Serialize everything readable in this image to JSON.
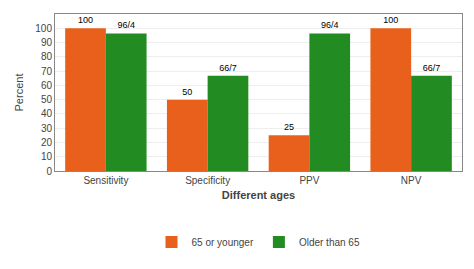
{
  "chart_data": {
    "type": "bar",
    "categories": [
      "Sensitivity",
      "Specificity",
      "PPV",
      "NPV"
    ],
    "series": [
      {
        "name": "65 or younger",
        "color": "#E8601C",
        "values": [
          100,
          50,
          25,
          100
        ]
      },
      {
        "name": "Older than 65",
        "color": "#228B22",
        "values": [
          96.4,
          66.7,
          96.4,
          66.7
        ],
        "value_labels": [
          "96/4",
          "66/7",
          "96/4",
          "66/7"
        ]
      }
    ],
    "xlabel": "Different ages",
    "ylabel": "Percent",
    "ylim": [
      0,
      110
    ],
    "yticks": [
      0,
      10,
      20,
      30,
      40,
      50,
      60,
      70,
      80,
      90,
      100
    ],
    "grid": true,
    "legend": "bottom",
    "data_labels": true
  }
}
